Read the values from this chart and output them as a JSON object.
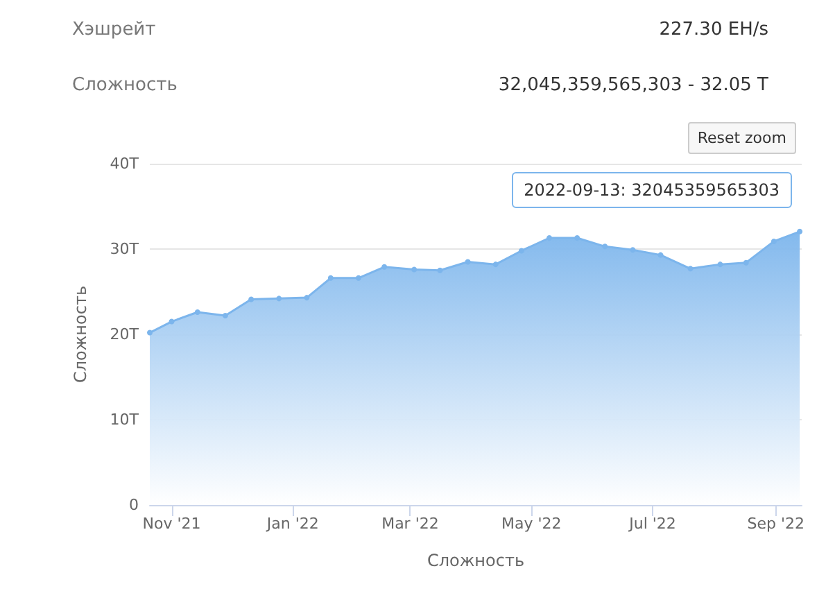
{
  "chart_data": {
    "type": "area",
    "xlabel": "Сложность",
    "ylabel": "Сложность",
    "annotations": [
      "Хэшрейт",
      "227.30 EH/s",
      "Сложность",
      "32,045,359,565,303 - 32.05 T",
      "Reset zoom",
      {
        "text": "2022-09-13: 32045359565303",
        "x": "2022-09-13",
        "y": 32.045359565303
      }
    ],
    "x": [
      "2021-10-21",
      "2021-11-01",
      "2021-11-14",
      "2021-11-28",
      "2021-12-11",
      "2021-12-25",
      "2022-01-08",
      "2022-01-20",
      "2022-02-03",
      "2022-02-16",
      "2022-03-03",
      "2022-03-16",
      "2022-03-30",
      "2022-04-13",
      "2022-04-26",
      "2022-05-10",
      "2022-05-24",
      "2022-06-07",
      "2022-06-21",
      "2022-07-05",
      "2022-07-20",
      "2022-08-04",
      "2022-08-17",
      "2022-08-31",
      "2022-09-13"
    ],
    "series": [
      {
        "color": "#7cb5ec",
        "values": [
          20.2,
          21.5,
          22.6,
          22.2,
          24.1,
          24.2,
          24.3,
          26.6,
          26.6,
          27.9,
          27.6,
          27.5,
          28.5,
          28.2,
          29.8,
          31.3,
          31.3,
          30.3,
          29.9,
          29.3,
          27.7,
          28.2,
          28.4,
          30.9,
          32.05
        ]
      }
    ],
    "xlim": [
      "2021-10-21",
      "2022-09-14"
    ],
    "xticks": [
      {
        "value": "2021-11-01",
        "label": "Nov '21"
      },
      {
        "value": "2022-01-01",
        "label": "Jan '22"
      },
      {
        "value": "2022-03-01",
        "label": "Mar '22"
      },
      {
        "value": "2022-05-01",
        "label": "May '22"
      },
      {
        "value": "2022-07-01",
        "label": "Jul '22"
      },
      {
        "value": "2022-09-01",
        "label": "Sep '22"
      }
    ],
    "ylim": [
      0,
      40
    ],
    "yticks": [
      0,
      {
        "value": 10,
        "label": "10T"
      },
      {
        "value": 20,
        "label": "20T"
      },
      {
        "value": 30,
        "label": "30T"
      },
      {
        "value": 40,
        "label": "40T"
      }
    ],
    "grid": "y",
    "marker": "circle",
    "line_style": "solid"
  }
}
